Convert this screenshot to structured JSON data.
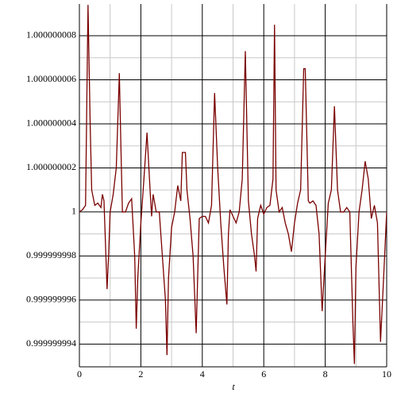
{
  "chart_data": {
    "type": "line",
    "x_label": "t",
    "x": [
      0,
      0.1,
      0.2,
      0.28,
      0.35,
      0.4,
      0.5,
      0.6,
      0.7,
      0.75,
      0.8,
      0.9,
      0.95,
      1.0,
      1.1,
      1.2,
      1.3,
      1.35,
      1.4,
      1.5,
      1.6,
      1.7,
      1.8,
      1.85,
      1.9,
      2.0,
      2.1,
      2.2,
      2.3,
      2.35,
      2.4,
      2.5,
      2.6,
      2.7,
      2.8,
      2.85,
      2.9,
      3.0,
      3.1,
      3.2,
      3.3,
      3.35,
      3.45,
      3.5,
      3.6,
      3.7,
      3.8,
      3.9,
      4.0,
      4.1,
      4.2,
      4.3,
      4.4,
      4.5,
      4.6,
      4.7,
      4.8,
      4.85,
      4.9,
      5.0,
      5.1,
      5.2,
      5.3,
      5.4,
      5.5,
      5.6,
      5.7,
      5.75,
      5.8,
      5.9,
      6.0,
      6.1,
      6.2,
      6.3,
      6.35,
      6.4,
      6.5,
      6.6,
      6.7,
      6.8,
      6.9,
      7.0,
      7.1,
      7.2,
      7.3,
      7.35,
      7.45,
      7.5,
      7.6,
      7.7,
      7.8,
      7.9,
      8.0,
      8.1,
      8.2,
      8.3,
      8.4,
      8.5,
      8.6,
      8.7,
      8.8,
      8.9,
      8.95,
      9.0,
      9.1,
      9.2,
      9.3,
      9.4,
      9.5,
      9.6,
      9.7,
      9.8,
      9.9,
      10
    ],
    "values": [
      1,
      1.0000000001,
      1.0000000003,
      1.0000000094,
      1.000000004,
      1.000000001,
      1.0000000003,
      1.0000000004,
      1.0000000002,
      1.0000000008,
      1.0000000005,
      0.9999999965,
      0.999999998,
      1,
      1.0000000008,
      1.000000002,
      1.0000000063,
      1.000000003,
      1,
      1,
      1.0000000004,
      1.0000000006,
      0.999999998,
      0.9999999947,
      0.999999997,
      0.9999999995,
      1.0000000015,
      1.0000000036,
      1.000000001,
      0.9999999998,
      1.0000000008,
      1,
      1,
      0.999999998,
      0.999999996,
      0.9999999935,
      0.999999997,
      0.9999999993,
      1,
      1.0000000012,
      1.0000000005,
      1.0000000027,
      1.0000000027,
      1.000000001,
      0.9999999997,
      0.999999998,
      0.9999999945,
      0.9999999997,
      0.9999999998,
      0.9999999998,
      0.9999999995,
      1.0000000003,
      1.0000000054,
      1.000000002,
      0.9999999995,
      0.9999999975,
      0.9999999958,
      0.999999999,
      1.0000000001,
      0.9999999998,
      0.9999999995,
      1,
      1.0000000015,
      1.0000000073,
      1.0000000005,
      0.999999999,
      0.999999998,
      0.9999999973,
      0.9999999997,
      1.0000000003,
      0.9999999999,
      1.0000000002,
      1.0000000003,
      1.0000000015,
      1.0000000085,
      1.000000001,
      1,
      1.0000000002,
      0.9999999995,
      0.999999999,
      0.9999999982,
      0.9999999995,
      1.0000000004,
      1.000000001,
      1.0000000065,
      1.0000000065,
      1.0000000005,
      1.0000000004,
      1.0000000005,
      1.0000000003,
      0.999999999,
      0.9999999955,
      0.999999998,
      1.0000000004,
      1.000000001,
      1.0000000048,
      1.000000001,
      1,
      1,
      1.0000000002,
      1,
      0.999999995,
      0.9999999931,
      0.9999999975,
      1,
      1.000000001,
      1.0000000023,
      1.0000000015,
      0.9999999997,
      1.0000000003,
      0.9999999995,
      0.9999999941,
      0.999999997,
      1
    ],
    "color": "#7a0000",
    "xlim": [
      0,
      10
    ],
    "xticks": [
      0,
      2,
      4,
      6,
      8,
      10
    ],
    "ylim": [
      0.99999999297,
      1.00000000944
    ],
    "yticks": [
      0.999999994,
      0.999999996,
      0.999999998,
      1,
      1.000000002,
      1.000000004,
      1.000000006,
      1.000000008
    ],
    "grid": true
  }
}
